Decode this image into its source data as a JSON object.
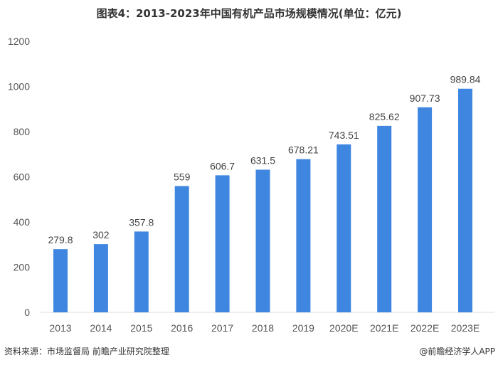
{
  "chart_data": {
    "type": "bar",
    "title": "图表4：2013-2023年中国有机产品市场规模情况(单位：亿元)",
    "categories": [
      "2013",
      "2014",
      "2015",
      "2016",
      "2017",
      "2018",
      "2019",
      "2020E",
      "2021E",
      "2022E",
      "2023E"
    ],
    "values": [
      279.8,
      302,
      357.8,
      559,
      606.7,
      631.5,
      678.21,
      743.51,
      825.62,
      907.73,
      989.84
    ],
    "value_labels": [
      "279.8",
      "302",
      "357.8",
      "559",
      "606.7",
      "631.5",
      "678.21",
      "743.51",
      "825.62",
      "907.73",
      "989.84"
    ],
    "yticks": [
      0,
      200,
      400,
      600,
      800,
      1000,
      1200
    ],
    "ylim": [
      0,
      1200
    ],
    "xlabel": "",
    "ylabel": "",
    "grid": false,
    "bar_color": "#3f86e0"
  },
  "footer": {
    "source": "资料来源：市场监督局 前瞻产业研究院整理",
    "credit": "@前瞻经济学人APP"
  }
}
